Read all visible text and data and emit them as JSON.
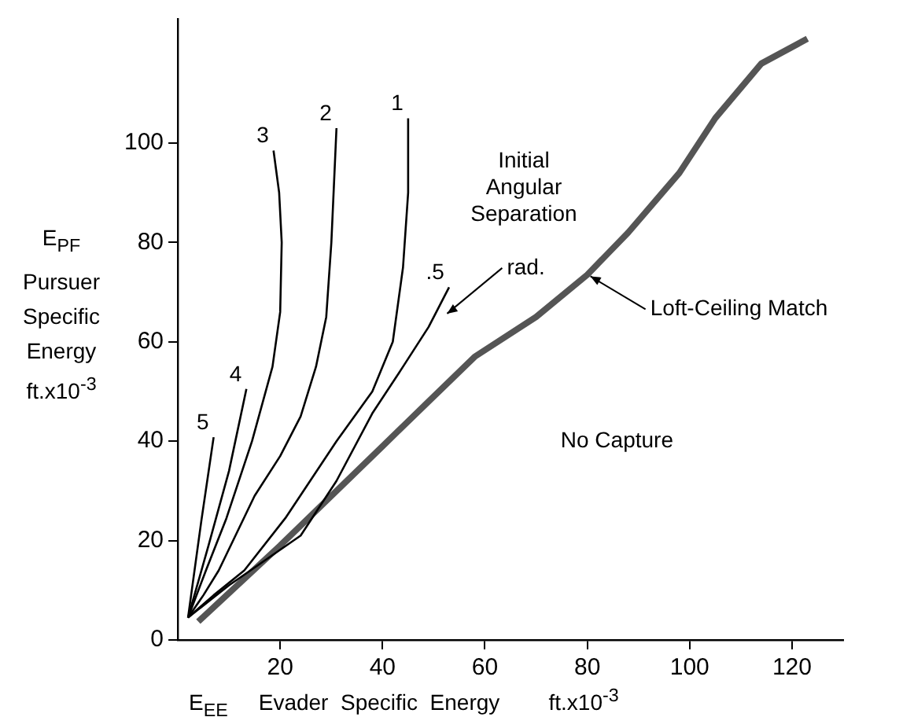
{
  "chart_data": {
    "type": "line",
    "xlabel": "E$_{EE}$     Evader  Specific  Energy        ft.x10$^{-3}$",
    "ylabel": "E$_{PF}$\nPursuer\nSpecific\nEnergy\nft.x10$^{-3}$",
    "xlim": [
      0,
      130
    ],
    "ylim": [
      0,
      125
    ],
    "xticks": [
      20,
      40,
      60,
      80,
      100,
      120
    ],
    "yticks": [
      0,
      20,
      40,
      60,
      80,
      100
    ],
    "grid": false,
    "legend": false,
    "marker": "none",
    "line_style": "solid",
    "series": [
      {
        "name": "5",
        "color": "#000000",
        "x": [
          2,
          4.6,
          7
        ],
        "values": [
          4.5,
          24,
          40.8
        ]
      },
      {
        "name": "4",
        "color": "#000000",
        "x": [
          2,
          6,
          10,
          13.4
        ],
        "values": [
          4.5,
          19,
          34,
          50.5
        ]
      },
      {
        "name": "3",
        "color": "#000000",
        "x": [
          2,
          5.5,
          9.5,
          14.5,
          18.5,
          20,
          20.3,
          19.8,
          18.7
        ],
        "values": [
          4.5,
          14,
          24.5,
          40,
          55,
          66,
          80,
          90,
          98.5
        ]
      },
      {
        "name": "2",
        "color": "#000000",
        "x": [
          2,
          5,
          8,
          15,
          20,
          24,
          27,
          29,
          30,
          31
        ],
        "values": [
          4.5,
          9,
          14,
          29,
          37,
          45,
          55,
          65,
          80,
          103
        ]
      },
      {
        "name": "1",
        "color": "#000000",
        "x": [
          2,
          7,
          13,
          21,
          31,
          38,
          42,
          44,
          45,
          45
        ],
        "values": [
          4.5,
          9,
          14,
          24.5,
          40,
          50,
          60,
          75,
          90,
          105
        ]
      },
      {
        "name": ".5",
        "color": "#000000",
        "x": [
          2,
          10,
          24,
          31,
          38,
          44,
          49,
          53
        ],
        "values": [
          4.5,
          11,
          21,
          32,
          45.6,
          55,
          63,
          71
        ]
      },
      {
        "color": "#555555",
        "x": [
          4,
          20,
          40,
          58,
          70,
          80,
          88,
          98,
          105,
          114,
          123
        ],
        "values": [
          3.7,
          19,
          39,
          57,
          65,
          73.5,
          82,
          94,
          105,
          116,
          121
        ]
      }
    ],
    "annotations": [
      "Initial\nAngular\nSeparation",
      {
        "text": "rad.",
        "x": 52,
        "y": 66
      },
      {
        "text": "Loft-Ceiling Match",
        "x": 80,
        "y": 73.5
      },
      "No Capture"
    ]
  }
}
